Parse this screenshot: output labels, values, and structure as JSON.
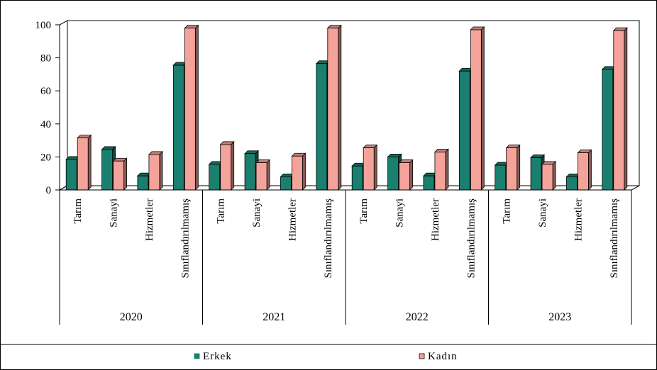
{
  "chart_data": {
    "type": "bar",
    "title": "",
    "xlabel": "",
    "ylabel": "",
    "ylim": [
      0,
      100
    ],
    "yticks": [
      0,
      20,
      40,
      60,
      80,
      100
    ],
    "grid": false,
    "legend_position": "bottom",
    "three_d": true,
    "groups": [
      {
        "label": "2020",
        "categories": [
          "Tarım",
          "Sanayi",
          "Hizmetler",
          "Sınıflandırılmamış"
        ]
      },
      {
        "label": "2021",
        "categories": [
          "Tarım",
          "Sanayi",
          "Hizmetler",
          "Sınıflandırılmamış"
        ]
      },
      {
        "label": "2022",
        "categories": [
          "Tarım",
          "Sanayi",
          "Hizmetler",
          "Sınıflandırılmamış"
        ]
      },
      {
        "label": "2023",
        "categories": [
          "Tarım",
          "Sanayi",
          "Hizmetler",
          "Sınıflandırılmamış"
        ]
      }
    ],
    "series": [
      {
        "name": "Erkek",
        "color": "#1a7f6e",
        "values": [
          18.5,
          24.5,
          8.5,
          75.5,
          15.5,
          22.0,
          8.0,
          76.5,
          14.5,
          20.0,
          8.5,
          72.0,
          15.0,
          19.5,
          8.0,
          73.0
        ]
      },
      {
        "name": "Kadın",
        "color": "#f4a39a",
        "values": [
          31.5,
          17.5,
          21.5,
          98.0,
          27.5,
          16.5,
          20.5,
          98.0,
          25.5,
          16.5,
          23.0,
          97.0,
          25.5,
          15.5,
          22.5,
          96.5
        ]
      }
    ]
  }
}
